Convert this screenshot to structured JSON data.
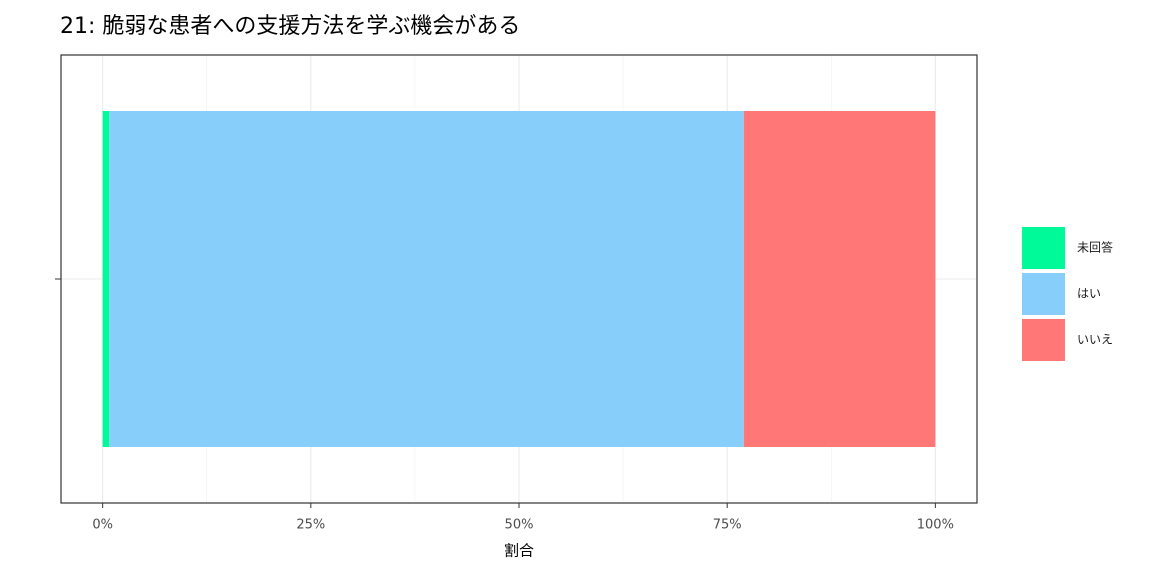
{
  "chart_data": {
    "type": "stacked-barh",
    "title": "21: 脆弱な患者への支援方法を学ぶ機会がある",
    "xlabel": "割合",
    "categories": [
      null
    ],
    "series": [
      {
        "name": "未回答",
        "color": "#00FA9A",
        "values": [
          0.8
        ]
      },
      {
        "name": "はい",
        "color": "#87CEFA",
        "values": [
          76.2
        ]
      },
      {
        "name": "いいえ",
        "color": "#FF7777",
        "values": [
          23.0
        ]
      }
    ],
    "xlim": [
      -5,
      105
    ],
    "xticks": [
      {
        "value": 0,
        "label": "0%"
      },
      {
        "value": 25,
        "label": "25%"
      },
      {
        "value": 50,
        "label": "50%"
      },
      {
        "value": 75,
        "label": "75%"
      },
      {
        "value": 100,
        "label": "100%"
      }
    ],
    "x_minor_ticks": [
      12.5,
      37.5,
      62.5,
      87.5
    ],
    "grid": true,
    "legend": "right"
  }
}
